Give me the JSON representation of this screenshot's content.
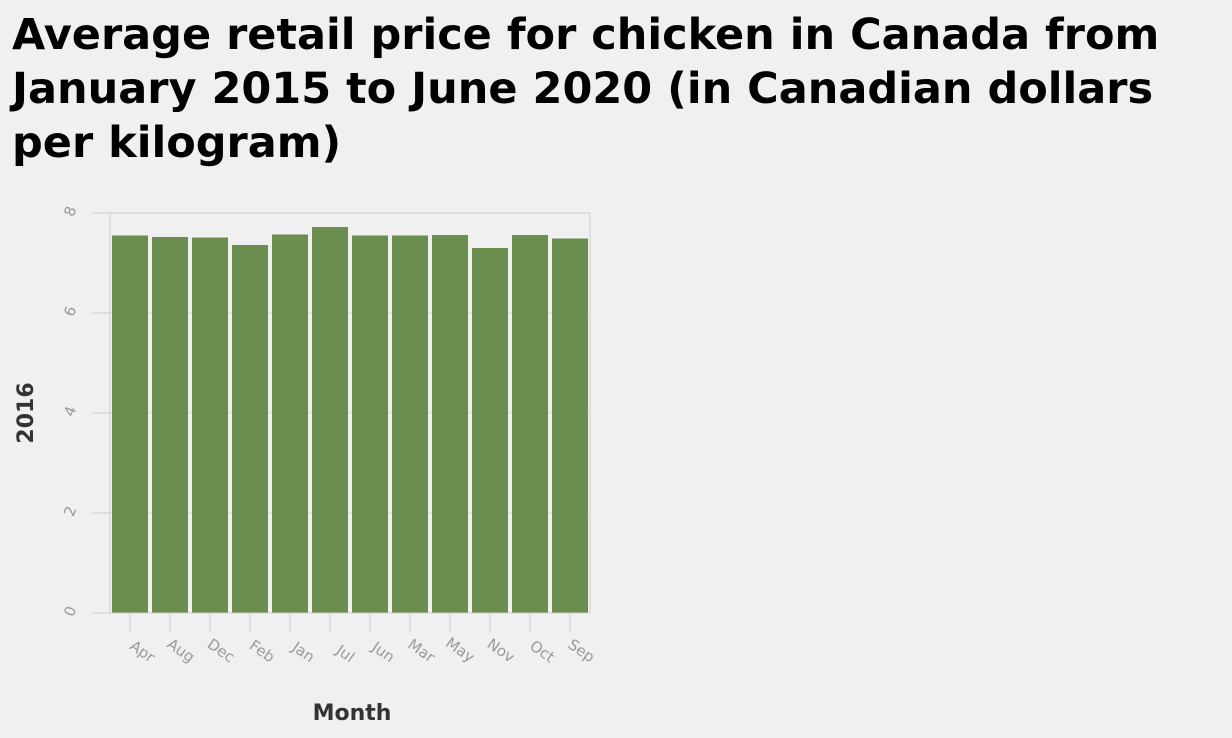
{
  "chart_data": {
    "type": "bar",
    "title": "Average retail price for chicken in Canada from January 2015 to June 2020 (in Canadian dollars per kilogram)",
    "xlabel": "Month",
    "ylabel": "2016",
    "categories": [
      "Apr",
      "Aug",
      "Dec",
      "Feb",
      "Jan",
      "Jul",
      "Jun",
      "Mar",
      "May",
      "Nov",
      "Oct",
      "Sep"
    ],
    "values": [
      7.55,
      7.52,
      7.51,
      7.36,
      7.57,
      7.72,
      7.55,
      7.55,
      7.56,
      7.3,
      7.56,
      7.49
    ],
    "yticks": [
      0,
      2,
      4,
      6,
      8
    ],
    "ylim": [
      0,
      8
    ],
    "grid": true,
    "colors": {
      "bar": "#6b8e4e",
      "grid": "#d8d8d8",
      "axis": "#cccccc",
      "tick_text": "#9a9a9a",
      "background": "#f0f0f0"
    }
  }
}
